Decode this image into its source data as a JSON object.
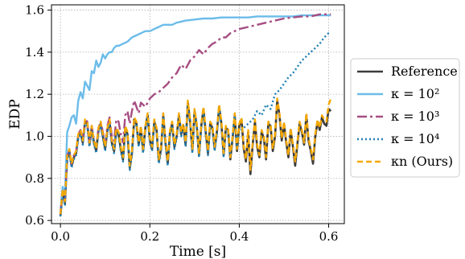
{
  "chart_data": {
    "type": "line",
    "xlabel": "Time [s]",
    "ylabel": "EDP",
    "xlim": [
      -0.02,
      0.635
    ],
    "ylim": [
      0.585,
      1.625
    ],
    "xticks": [
      0.0,
      0.2,
      0.4,
      0.6
    ],
    "yticks": [
      0.6,
      0.8,
      1.0,
      1.2,
      1.4,
      1.6
    ],
    "xtick_labels": [
      "0.0",
      "0.2",
      "0.4",
      "0.6"
    ],
    "ytick_labels": [
      "0.6",
      "0.8",
      "1.0",
      "1.2",
      "1.4",
      "1.6"
    ],
    "grid": true,
    "legend_position": "right, outside",
    "series": [
      {
        "name": "Reference",
        "color": "#3b3b3b",
        "dash": "solid",
        "x": [
          0.0,
          0.005,
          0.01,
          0.015,
          0.02,
          0.025,
          0.03,
          0.035,
          0.04,
          0.045,
          0.05,
          0.055,
          0.06,
          0.065,
          0.07,
          0.075,
          0.08,
          0.085,
          0.09,
          0.095,
          0.1,
          0.105,
          0.11,
          0.115,
          0.12,
          0.125,
          0.13,
          0.135,
          0.14,
          0.145,
          0.15,
          0.155,
          0.16,
          0.165,
          0.17,
          0.175,
          0.18,
          0.185,
          0.19,
          0.195,
          0.2,
          0.205,
          0.21,
          0.215,
          0.22,
          0.225,
          0.23,
          0.235,
          0.24,
          0.245,
          0.25,
          0.255,
          0.26,
          0.265,
          0.27,
          0.275,
          0.28,
          0.285,
          0.29,
          0.295,
          0.3,
          0.305,
          0.31,
          0.315,
          0.32,
          0.325,
          0.33,
          0.335,
          0.34,
          0.345,
          0.35,
          0.355,
          0.36,
          0.365,
          0.37,
          0.375,
          0.38,
          0.385,
          0.39,
          0.395,
          0.4,
          0.405,
          0.41,
          0.415,
          0.42,
          0.425,
          0.43,
          0.435,
          0.44,
          0.445,
          0.45,
          0.455,
          0.46,
          0.465,
          0.47,
          0.475,
          0.48,
          0.485,
          0.49,
          0.495,
          0.5,
          0.505,
          0.51,
          0.515,
          0.52,
          0.525,
          0.53,
          0.535,
          0.54,
          0.545,
          0.55,
          0.555,
          0.56,
          0.565,
          0.57,
          0.575,
          0.58,
          0.585,
          0.59,
          0.595,
          0.6,
          0.605
        ],
        "values": [
          0.62,
          0.74,
          0.68,
          0.9,
          0.93,
          0.86,
          0.9,
          0.92,
          1.0,
          1.02,
          0.97,
          1.07,
          1.06,
          0.96,
          1.04,
          0.97,
          0.93,
          1.03,
          1.06,
          1.0,
          0.94,
          1.03,
          1.07,
          0.97,
          0.93,
          1.03,
          1.01,
          0.94,
          0.89,
          1.04,
          1.01,
          0.85,
          0.92,
          1.08,
          1.06,
          0.96,
          1.04,
          0.93,
          1.04,
          1.1,
          0.98,
          0.94,
          1.07,
          1.03,
          0.88,
          0.94,
          1.1,
          0.97,
          0.87,
          1.02,
          1.06,
          0.95,
          1.0,
          1.1,
          1.01,
          1.05,
          0.96,
          1.16,
          1.07,
          0.93,
          1.12,
          1.05,
          0.91,
          1.05,
          1.13,
          1.02,
          0.92,
          1.06,
          1.04,
          0.94,
          1.02,
          1.14,
          1.06,
          0.91,
          1.04,
          1.03,
          0.89,
          0.99,
          1.1,
          0.93,
          1.05,
          1.08,
          0.94,
          0.88,
          1.02,
          0.82,
          0.96,
          1.07,
          0.95,
          0.9,
          1.02,
          0.99,
          0.89,
          1.06,
          1.05,
          0.93,
          1.0,
          1.17,
          1.1,
          0.98,
          1.06,
          0.97,
          0.9,
          1.03,
          0.95,
          0.86,
          0.96,
          1.06,
          1.02,
          0.96,
          1.1,
          0.98,
          0.93,
          0.87,
          1.0,
          1.07,
          1.03,
          1.09,
          1.06,
          1.05,
          1.13,
          1.12
        ]
      },
      {
        "name": "κ = 10²",
        "color": "#6cbcea",
        "dash": "solid",
        "x": [
          0.0,
          0.005,
          0.01,
          0.015,
          0.02,
          0.025,
          0.03,
          0.035,
          0.04,
          0.045,
          0.05,
          0.055,
          0.06,
          0.065,
          0.07,
          0.075,
          0.08,
          0.085,
          0.09,
          0.095,
          0.1,
          0.105,
          0.11,
          0.115,
          0.12,
          0.125,
          0.13,
          0.14,
          0.15,
          0.16,
          0.17,
          0.18,
          0.19,
          0.2,
          0.21,
          0.22,
          0.23,
          0.24,
          0.25,
          0.26,
          0.27,
          0.28,
          0.3,
          0.32,
          0.34,
          0.36,
          0.38,
          0.4,
          0.42,
          0.44,
          0.46,
          0.48,
          0.5,
          0.52,
          0.54,
          0.56,
          0.58,
          0.6,
          0.605
        ],
        "values": [
          0.64,
          0.76,
          0.72,
          1.02,
          1.05,
          1.09,
          1.1,
          1.06,
          1.17,
          1.21,
          1.18,
          1.26,
          1.24,
          1.22,
          1.31,
          1.3,
          1.36,
          1.33,
          1.35,
          1.39,
          1.37,
          1.39,
          1.4,
          1.4,
          1.42,
          1.43,
          1.43,
          1.44,
          1.45,
          1.47,
          1.48,
          1.49,
          1.5,
          1.5,
          1.51,
          1.52,
          1.53,
          1.53,
          1.53,
          1.54,
          1.545,
          1.55,
          1.555,
          1.56,
          1.56,
          1.565,
          1.565,
          1.565,
          1.565,
          1.57,
          1.57,
          1.57,
          1.57,
          1.57,
          1.575,
          1.575,
          1.575,
          1.575,
          1.575
        ]
      },
      {
        "name": "κ = 10³",
        "color": "#a64d82",
        "dash": "dashdot",
        "x": [
          0.0,
          0.005,
          0.01,
          0.015,
          0.02,
          0.025,
          0.03,
          0.035,
          0.04,
          0.045,
          0.05,
          0.055,
          0.06,
          0.065,
          0.07,
          0.075,
          0.08,
          0.085,
          0.09,
          0.095,
          0.1,
          0.105,
          0.11,
          0.115,
          0.12,
          0.125,
          0.13,
          0.135,
          0.14,
          0.145,
          0.15,
          0.155,
          0.16,
          0.165,
          0.17,
          0.175,
          0.18,
          0.19,
          0.2,
          0.21,
          0.22,
          0.23,
          0.24,
          0.25,
          0.26,
          0.27,
          0.28,
          0.29,
          0.3,
          0.31,
          0.32,
          0.33,
          0.34,
          0.35,
          0.36,
          0.37,
          0.38,
          0.39,
          0.4,
          0.42,
          0.44,
          0.46,
          0.48,
          0.5,
          0.52,
          0.54,
          0.56,
          0.58,
          0.6,
          0.605
        ],
        "values": [
          0.63,
          0.74,
          0.69,
          0.91,
          0.93,
          0.87,
          0.91,
          0.93,
          1.01,
          1.03,
          0.98,
          1.08,
          1.07,
          0.97,
          1.05,
          0.98,
          0.95,
          1.04,
          1.07,
          1.02,
          0.96,
          1.05,
          1.09,
          1.0,
          0.98,
          1.08,
          1.07,
          1.01,
          0.97,
          1.1,
          1.12,
          1.06,
          1.12,
          1.17,
          1.14,
          1.11,
          1.16,
          1.14,
          1.18,
          1.2,
          1.21,
          1.23,
          1.25,
          1.28,
          1.3,
          1.34,
          1.32,
          1.36,
          1.38,
          1.41,
          1.39,
          1.42,
          1.44,
          1.45,
          1.47,
          1.47,
          1.49,
          1.5,
          1.51,
          1.52,
          1.53,
          1.54,
          1.55,
          1.56,
          1.565,
          1.57,
          1.57,
          1.58,
          1.58,
          1.58
        ]
      },
      {
        "name": "κ = 10⁴",
        "color": "#1e7fb4",
        "dash": "dotted",
        "x": [
          0.0,
          0.005,
          0.01,
          0.015,
          0.02,
          0.025,
          0.03,
          0.035,
          0.04,
          0.045,
          0.05,
          0.055,
          0.06,
          0.065,
          0.07,
          0.075,
          0.08,
          0.085,
          0.09,
          0.095,
          0.1,
          0.105,
          0.11,
          0.115,
          0.12,
          0.125,
          0.13,
          0.135,
          0.14,
          0.145,
          0.15,
          0.155,
          0.16,
          0.165,
          0.17,
          0.175,
          0.18,
          0.185,
          0.19,
          0.195,
          0.2,
          0.205,
          0.21,
          0.215,
          0.22,
          0.225,
          0.23,
          0.235,
          0.24,
          0.245,
          0.25,
          0.255,
          0.26,
          0.265,
          0.27,
          0.275,
          0.28,
          0.285,
          0.29,
          0.295,
          0.3,
          0.305,
          0.31,
          0.315,
          0.32,
          0.325,
          0.33,
          0.335,
          0.34,
          0.345,
          0.35,
          0.355,
          0.36,
          0.365,
          0.37,
          0.375,
          0.38,
          0.385,
          0.39,
          0.395,
          0.4,
          0.41,
          0.42,
          0.43,
          0.44,
          0.45,
          0.46,
          0.47,
          0.48,
          0.49,
          0.5,
          0.51,
          0.52,
          0.53,
          0.54,
          0.55,
          0.56,
          0.57,
          0.58,
          0.59,
          0.6,
          0.605
        ],
        "values": [
          0.62,
          0.73,
          0.67,
          0.89,
          0.92,
          0.85,
          0.89,
          0.91,
          0.99,
          1.01,
          0.96,
          1.06,
          1.05,
          0.95,
          1.03,
          0.96,
          0.92,
          1.02,
          1.05,
          0.99,
          0.93,
          1.02,
          1.06,
          0.96,
          0.92,
          1.02,
          1.0,
          0.93,
          0.88,
          1.03,
          1.0,
          0.84,
          0.91,
          1.07,
          1.05,
          0.95,
          1.03,
          0.92,
          1.03,
          1.09,
          0.97,
          0.93,
          1.06,
          1.02,
          0.87,
          0.93,
          1.09,
          0.96,
          0.86,
          1.01,
          1.05,
          0.94,
          0.99,
          1.09,
          1.0,
          1.04,
          0.95,
          1.15,
          1.06,
          0.92,
          1.11,
          1.04,
          0.9,
          1.04,
          1.12,
          1.01,
          0.91,
          1.05,
          1.03,
          0.93,
          1.01,
          1.13,
          1.05,
          0.9,
          1.03,
          1.02,
          0.9,
          1.0,
          1.09,
          0.96,
          1.02,
          1.04,
          1.06,
          1.08,
          1.12,
          1.1,
          1.15,
          1.13,
          1.2,
          1.22,
          1.25,
          1.28,
          1.3,
          1.33,
          1.36,
          1.38,
          1.4,
          1.42,
          1.44,
          1.47,
          1.49,
          1.49
        ]
      },
      {
        "name": "κn (Ours)",
        "color": "#f5a800",
        "dash": "dashed",
        "x": [
          0.0,
          0.005,
          0.01,
          0.015,
          0.02,
          0.025,
          0.03,
          0.035,
          0.04,
          0.045,
          0.05,
          0.055,
          0.06,
          0.065,
          0.07,
          0.075,
          0.08,
          0.085,
          0.09,
          0.095,
          0.1,
          0.105,
          0.11,
          0.115,
          0.12,
          0.125,
          0.13,
          0.135,
          0.14,
          0.145,
          0.15,
          0.155,
          0.16,
          0.165,
          0.17,
          0.175,
          0.18,
          0.185,
          0.19,
          0.195,
          0.2,
          0.205,
          0.21,
          0.215,
          0.22,
          0.225,
          0.23,
          0.235,
          0.24,
          0.245,
          0.25,
          0.255,
          0.26,
          0.265,
          0.27,
          0.275,
          0.28,
          0.285,
          0.29,
          0.295,
          0.3,
          0.305,
          0.31,
          0.315,
          0.32,
          0.325,
          0.33,
          0.335,
          0.34,
          0.345,
          0.35,
          0.355,
          0.36,
          0.365,
          0.37,
          0.375,
          0.38,
          0.385,
          0.39,
          0.395,
          0.4,
          0.405,
          0.41,
          0.415,
          0.42,
          0.425,
          0.43,
          0.435,
          0.44,
          0.445,
          0.45,
          0.455,
          0.46,
          0.465,
          0.47,
          0.475,
          0.48,
          0.485,
          0.49,
          0.495,
          0.5,
          0.505,
          0.51,
          0.515,
          0.52,
          0.525,
          0.53,
          0.535,
          0.54,
          0.545,
          0.55,
          0.555,
          0.56,
          0.565,
          0.57,
          0.575,
          0.58,
          0.585,
          0.59,
          0.595,
          0.6,
          0.605
        ],
        "values": [
          0.63,
          0.75,
          0.69,
          0.91,
          0.94,
          0.87,
          0.91,
          0.93,
          1.01,
          1.03,
          0.98,
          1.08,
          1.07,
          0.97,
          1.05,
          0.98,
          0.94,
          1.04,
          1.07,
          1.01,
          0.95,
          1.04,
          1.08,
          0.98,
          0.94,
          1.04,
          1.02,
          0.95,
          0.9,
          1.05,
          1.02,
          0.86,
          0.93,
          1.09,
          1.07,
          0.97,
          1.05,
          0.94,
          1.05,
          1.11,
          0.99,
          0.95,
          1.08,
          1.04,
          0.89,
          0.95,
          1.11,
          0.98,
          0.88,
          1.03,
          1.07,
          0.96,
          1.01,
          1.11,
          1.02,
          1.06,
          0.97,
          1.17,
          1.08,
          0.94,
          1.13,
          1.06,
          0.92,
          1.06,
          1.14,
          1.03,
          0.93,
          1.07,
          1.05,
          0.95,
          1.03,
          1.15,
          1.07,
          0.92,
          1.05,
          1.04,
          0.9,
          1.0,
          1.11,
          0.94,
          1.06,
          1.09,
          0.95,
          0.89,
          1.03,
          0.84,
          0.97,
          1.08,
          0.96,
          0.91,
          1.03,
          1.0,
          0.9,
          1.07,
          1.06,
          0.94,
          1.01,
          1.18,
          1.11,
          0.99,
          1.07,
          0.98,
          0.91,
          1.04,
          0.96,
          0.88,
          0.97,
          1.07,
          1.03,
          0.97,
          1.11,
          0.99,
          0.94,
          0.89,
          1.01,
          1.08,
          1.04,
          1.1,
          1.08,
          1.07,
          1.15,
          1.18
        ]
      }
    ]
  }
}
